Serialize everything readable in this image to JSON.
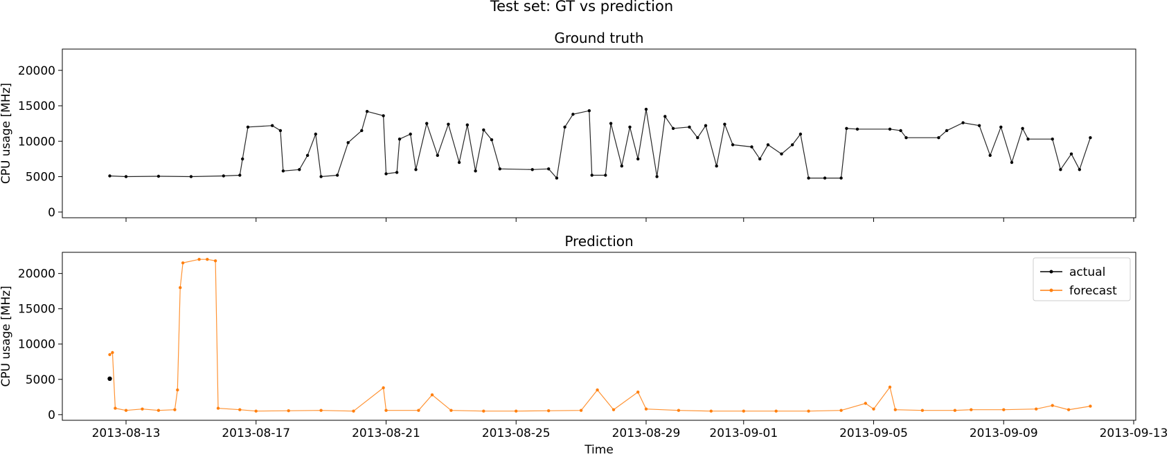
{
  "figure": {
    "suptitle": "Test set: GT vs prediction"
  },
  "chart_data": [
    {
      "type": "line",
      "title": "Ground truth",
      "ylabel": "CPU usage [MHz]",
      "xlabel": "",
      "ylim": [
        -800,
        23000
      ],
      "y_ticks": [
        0,
        5000,
        10000,
        15000,
        20000
      ],
      "x_ticks": [
        "2013-08-13",
        "2013-08-17",
        "2013-08-21",
        "2013-08-25",
        "2013-08-29",
        "2013-09-01",
        "2013-09-05",
        "2013-09-09",
        "2013-09-13"
      ],
      "x_tick_labels_visible": false,
      "grid": false,
      "legend": false,
      "series": [
        {
          "color": "#000000",
          "points": [
            [
              "2013-08-12 12:00",
              5100
            ],
            [
              "2013-08-13 00:00",
              5000
            ],
            [
              "2013-08-14 00:00",
              5050
            ],
            [
              "2013-08-15 00:00",
              5000
            ],
            [
              "2013-08-16 00:00",
              5100
            ],
            [
              "2013-08-16 12:00",
              5200
            ],
            [
              "2013-08-16 14:00",
              7500
            ],
            [
              "2013-08-16 18:00",
              12000
            ],
            [
              "2013-08-17 12:00",
              12200
            ],
            [
              "2013-08-17 18:00",
              11500
            ],
            [
              "2013-08-17 20:00",
              5800
            ],
            [
              "2013-08-18 08:00",
              6000
            ],
            [
              "2013-08-18 14:00",
              8000
            ],
            [
              "2013-08-18 20:00",
              11000
            ],
            [
              "2013-08-19 00:00",
              5000
            ],
            [
              "2013-08-19 12:00",
              5200
            ],
            [
              "2013-08-19 20:00",
              9800
            ],
            [
              "2013-08-20 06:00",
              11500
            ],
            [
              "2013-08-20 10:00",
              14200
            ],
            [
              "2013-08-20 22:00",
              13600
            ],
            [
              "2013-08-21 00:00",
              5400
            ],
            [
              "2013-08-21 08:00",
              5600
            ],
            [
              "2013-08-21 10:00",
              10300
            ],
            [
              "2013-08-21 18:00",
              11000
            ],
            [
              "2013-08-21 22:00",
              6000
            ],
            [
              "2013-08-22 06:00",
              12500
            ],
            [
              "2013-08-22 14:00",
              8000
            ],
            [
              "2013-08-22 22:00",
              12400
            ],
            [
              "2013-08-23 06:00",
              7000
            ],
            [
              "2013-08-23 12:00",
              12300
            ],
            [
              "2013-08-23 18:00",
              5800
            ],
            [
              "2013-08-24 00:00",
              11600
            ],
            [
              "2013-08-24 06:00",
              10200
            ],
            [
              "2013-08-24 12:00",
              6100
            ],
            [
              "2013-08-25 12:00",
              6000
            ],
            [
              "2013-08-26 00:00",
              6100
            ],
            [
              "2013-08-26 06:00",
              4800
            ],
            [
              "2013-08-26 12:00",
              12000
            ],
            [
              "2013-08-26 18:00",
              13800
            ],
            [
              "2013-08-27 06:00",
              14300
            ],
            [
              "2013-08-27 08:00",
              5200
            ],
            [
              "2013-08-27 18:00",
              5200
            ],
            [
              "2013-08-27 22:00",
              12500
            ],
            [
              "2013-08-28 06:00",
              6500
            ],
            [
              "2013-08-28 12:00",
              12000
            ],
            [
              "2013-08-28 18:00",
              7500
            ],
            [
              "2013-08-29 00:00",
              14500
            ],
            [
              "2013-08-29 08:00",
              5000
            ],
            [
              "2013-08-29 14:00",
              13500
            ],
            [
              "2013-08-29 20:00",
              11800
            ],
            [
              "2013-08-30 08:00",
              12000
            ],
            [
              "2013-08-30 14:00",
              10500
            ],
            [
              "2013-08-30 20:00",
              12200
            ],
            [
              "2013-08-31 04:00",
              6500
            ],
            [
              "2013-08-31 10:00",
              12400
            ],
            [
              "2013-08-31 16:00",
              9500
            ],
            [
              "2013-09-01 06:00",
              9200
            ],
            [
              "2013-09-01 12:00",
              7500
            ],
            [
              "2013-09-01 18:00",
              9500
            ],
            [
              "2013-09-02 04:00",
              8200
            ],
            [
              "2013-09-02 12:00",
              9500
            ],
            [
              "2013-09-02 18:00",
              11000
            ],
            [
              "2013-09-03 00:00",
              4800
            ],
            [
              "2013-09-03 12:00",
              4800
            ],
            [
              "2013-09-04 00:00",
              4800
            ],
            [
              "2013-09-04 04:00",
              11800
            ],
            [
              "2013-09-04 12:00",
              11700
            ],
            [
              "2013-09-05 12:00",
              11700
            ],
            [
              "2013-09-05 20:00",
              11500
            ],
            [
              "2013-09-06 00:00",
              10500
            ],
            [
              "2013-09-07 00:00",
              10500
            ],
            [
              "2013-09-07 06:00",
              11500
            ],
            [
              "2013-09-07 18:00",
              12600
            ],
            [
              "2013-09-08 06:00",
              12200
            ],
            [
              "2013-09-08 14:00",
              8000
            ],
            [
              "2013-09-08 22:00",
              12000
            ],
            [
              "2013-09-09 06:00",
              7000
            ],
            [
              "2013-09-09 14:00",
              11800
            ],
            [
              "2013-09-09 18:00",
              10300
            ],
            [
              "2013-09-10 12:00",
              10300
            ],
            [
              "2013-09-10 18:00",
              6000
            ],
            [
              "2013-09-11 02:00",
              8200
            ],
            [
              "2013-09-11 08:00",
              6000
            ],
            [
              "2013-09-11 16:00",
              10500
            ]
          ]
        }
      ]
    },
    {
      "type": "line",
      "title": "Prediction",
      "ylabel": "CPU usage [MHz]",
      "xlabel": "Time",
      "ylim": [
        -800,
        23000
      ],
      "y_ticks": [
        0,
        5000,
        10000,
        15000,
        20000
      ],
      "x_ticks": [
        "2013-08-13",
        "2013-08-17",
        "2013-08-21",
        "2013-08-25",
        "2013-08-29",
        "2013-09-01",
        "2013-09-05",
        "2013-09-09",
        "2013-09-13"
      ],
      "x_tick_labels_visible": true,
      "grid": false,
      "legend": {
        "position": "top-right",
        "entries": [
          {
            "label": "actual",
            "color": "#000000"
          },
          {
            "label": "forecast",
            "color": "#ff7f0e"
          }
        ]
      },
      "series": [
        {
          "name": "actual",
          "color": "#000000",
          "points": [
            [
              "2013-08-12 12:00",
              5100
            ]
          ]
        },
        {
          "name": "forecast",
          "color": "#ff7f0e",
          "points": [
            [
              "2013-08-12 12:00",
              8500
            ],
            [
              "2013-08-12 14:00",
              8800
            ],
            [
              "2013-08-12 16:00",
              900
            ],
            [
              "2013-08-13 00:00",
              600
            ],
            [
              "2013-08-13 12:00",
              800
            ],
            [
              "2013-08-14 00:00",
              600
            ],
            [
              "2013-08-14 12:00",
              700
            ],
            [
              "2013-08-14 14:00",
              3500
            ],
            [
              "2013-08-14 16:00",
              18000
            ],
            [
              "2013-08-14 18:00",
              21500
            ],
            [
              "2013-08-15 06:00",
              22000
            ],
            [
              "2013-08-15 12:00",
              22000
            ],
            [
              "2013-08-15 18:00",
              21800
            ],
            [
              "2013-08-15 20:00",
              900
            ],
            [
              "2013-08-16 12:00",
              700
            ],
            [
              "2013-08-17 00:00",
              500
            ],
            [
              "2013-08-18 00:00",
              550
            ],
            [
              "2013-08-19 00:00",
              600
            ],
            [
              "2013-08-20 00:00",
              500
            ],
            [
              "2013-08-20 22:00",
              3800
            ],
            [
              "2013-08-21 00:00",
              600
            ],
            [
              "2013-08-22 00:00",
              600
            ],
            [
              "2013-08-22 10:00",
              2800
            ],
            [
              "2013-08-23 00:00",
              600
            ],
            [
              "2013-08-24 00:00",
              500
            ],
            [
              "2013-08-25 00:00",
              500
            ],
            [
              "2013-08-26 00:00",
              550
            ],
            [
              "2013-08-27 00:00",
              600
            ],
            [
              "2013-08-27 12:00",
              3500
            ],
            [
              "2013-08-28 00:00",
              700
            ],
            [
              "2013-08-28 18:00",
              3200
            ],
            [
              "2013-08-29 00:00",
              800
            ],
            [
              "2013-08-30 00:00",
              600
            ],
            [
              "2013-08-31 00:00",
              500
            ],
            [
              "2013-09-01 00:00",
              500
            ],
            [
              "2013-09-02 00:00",
              500
            ],
            [
              "2013-09-03 00:00",
              500
            ],
            [
              "2013-09-04 00:00",
              600
            ],
            [
              "2013-09-04 18:00",
              1600
            ],
            [
              "2013-09-05 00:00",
              800
            ],
            [
              "2013-09-05 12:00",
              3900
            ],
            [
              "2013-09-05 16:00",
              700
            ],
            [
              "2013-09-06 12:00",
              600
            ],
            [
              "2013-09-07 12:00",
              600
            ],
            [
              "2013-09-08 00:00",
              700
            ],
            [
              "2013-09-09 00:00",
              700
            ],
            [
              "2013-09-10 00:00",
              800
            ],
            [
              "2013-09-10 12:00",
              1300
            ],
            [
              "2013-09-11 00:00",
              700
            ],
            [
              "2013-09-11 16:00",
              1200
            ]
          ]
        }
      ]
    }
  ]
}
